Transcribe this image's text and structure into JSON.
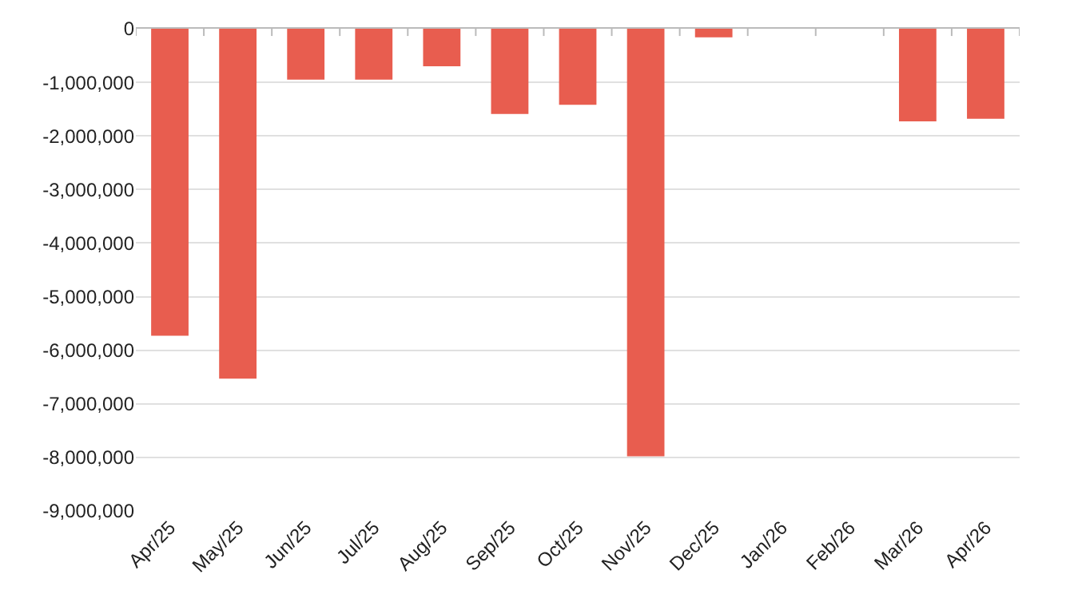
{
  "chart_data": {
    "type": "bar",
    "categories": [
      "Apr/25",
      "May/25",
      "Jun/25",
      "Jul/25",
      "Aug/25",
      "Sep/25",
      "Oct/25",
      "Nov/25",
      "Dec/25",
      "Jan/26",
      "Feb/26",
      "Mar/26",
      "Apr/26"
    ],
    "values": [
      -5730000,
      -6530000,
      -950000,
      -950000,
      -700000,
      -1590000,
      -1420000,
      -7980000,
      -160000,
      null,
      null,
      -1730000,
      -1680000
    ],
    "color": "#e85d4f",
    "ylim": [
      -9000000,
      0
    ],
    "yticks": [
      {
        "value": 0,
        "label": "0"
      },
      {
        "value": -1000000,
        "label": "-1,000,000"
      },
      {
        "value": -2000000,
        "label": "-2,000,000"
      },
      {
        "value": -3000000,
        "label": "-3,000,000"
      },
      {
        "value": -4000000,
        "label": "-4,000,000"
      },
      {
        "value": -5000000,
        "label": "-5,000,000"
      },
      {
        "value": -6000000,
        "label": "-6,000,000"
      },
      {
        "value": -7000000,
        "label": "-7,000,000"
      },
      {
        "value": -8000000,
        "label": "-8,000,000"
      },
      {
        "value": -9000000,
        "label": "-9,000,000"
      }
    ],
    "grid": "y"
  }
}
